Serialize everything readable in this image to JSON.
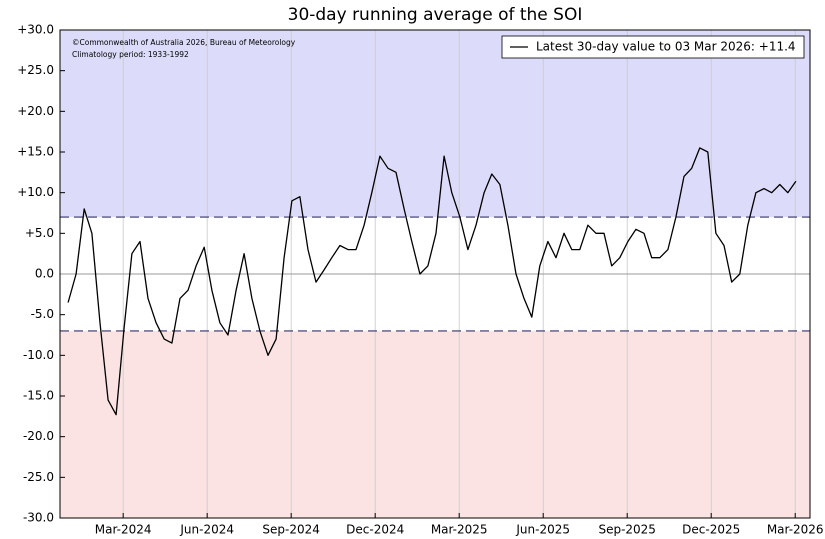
{
  "chart_data": {
    "type": "line",
    "title": "30-day running average of the SOI",
    "annotations": [
      "©Commonwealth of Australia 2026, Bureau of Meteorology",
      "Climatology period: 1933-1992"
    ],
    "legend": "upper right",
    "grid": true,
    "thresholds": [
      7,
      -7
    ],
    "upper_color": "#dcdcfa",
    "lower_color": "#fbe3e3",
    "xlim": [
      2023.979,
      2026.211
    ],
    "xticks": [
      {
        "value": 2024.167,
        "label": "Mar-2024"
      },
      {
        "value": 2024.417,
        "label": "Jun-2024"
      },
      {
        "value": 2024.667,
        "label": "Sep-2024"
      },
      {
        "value": 2024.917,
        "label": "Dec-2024"
      },
      {
        "value": 2025.167,
        "label": "Mar-2025"
      },
      {
        "value": 2025.417,
        "label": "Jun-2025"
      },
      {
        "value": 2025.667,
        "label": "Sep-2025"
      },
      {
        "value": 2025.917,
        "label": "Dec-2025"
      },
      {
        "value": 2026.167,
        "label": "Mar-2026"
      }
    ],
    "ylim": [
      -30,
      30
    ],
    "yticks": [
      {
        "value": 30,
        "label": "+30.0"
      },
      {
        "value": 25,
        "label": "+25.0"
      },
      {
        "value": 20,
        "label": "+20.0"
      },
      {
        "value": 15,
        "label": "+15.0"
      },
      {
        "value": 10,
        "label": "+10.0"
      },
      {
        "value": 5,
        "label": "+5.0"
      },
      {
        "value": 0,
        "label": "0.0"
      },
      {
        "value": -5,
        "label": "-5.0"
      },
      {
        "value": -10,
        "label": "-10.0"
      },
      {
        "value": -15,
        "label": "-15.0"
      },
      {
        "value": -20,
        "label": "-20.0"
      },
      {
        "value": -25,
        "label": "-25.0"
      },
      {
        "value": -30,
        "label": "-30.0"
      }
    ],
    "x": [
      2024.003,
      2024.027,
      2024.051,
      2024.074,
      2024.098,
      2024.122,
      2024.146,
      2024.17,
      2024.193,
      2024.217,
      2024.241,
      2024.265,
      2024.289,
      2024.312,
      2024.336,
      2024.36,
      2024.384,
      2024.408,
      2024.431,
      2024.455,
      2024.479,
      2024.503,
      2024.527,
      2024.55,
      2024.574,
      2024.598,
      2024.622,
      2024.646,
      2024.669,
      2024.693,
      2024.717,
      2024.741,
      2024.765,
      2024.788,
      2024.812,
      2024.836,
      2024.86,
      2024.884,
      2024.907,
      2024.931,
      2024.955,
      2024.979,
      2025.003,
      2025.026,
      2025.05,
      2025.074,
      2025.098,
      2025.122,
      2025.145,
      2025.169,
      2025.193,
      2025.217,
      2025.241,
      2025.264,
      2025.288,
      2025.312,
      2025.336,
      2025.36,
      2025.383,
      2025.407,
      2025.431,
      2025.455,
      2025.479,
      2025.502,
      2025.526,
      2025.55,
      2025.574,
      2025.598,
      2025.621,
      2025.645,
      2025.669,
      2025.693,
      2025.717,
      2025.74,
      2025.764,
      2025.788,
      2025.812,
      2025.836,
      2025.859,
      2025.883,
      2025.907,
      2025.931,
      2025.955,
      2025.978,
      2026.002,
      2026.026,
      2026.05,
      2026.074,
      2026.097,
      2026.121,
      2026.145,
      2026.169
    ],
    "series": [
      {
        "name": "Latest 30-day value to 03 Mar 2026: +11.4",
        "color": "#000000",
        "values": [
          -3.5,
          0,
          8,
          5,
          -6,
          -15.5,
          -17.3,
          -6.5,
          2.5,
          4,
          -3,
          -6,
          -8,
          -8.5,
          -3,
          -2,
          1,
          3.3,
          -2,
          -6,
          -7.5,
          -2,
          2.5,
          -3,
          -7,
          -10,
          -8,
          2,
          9,
          9.5,
          3,
          -1,
          0.5,
          2,
          3.5,
          3,
          3,
          6,
          10,
          14.5,
          13,
          12.5,
          8,
          4,
          0,
          1,
          5,
          14.5,
          10,
          7,
          3,
          6,
          10,
          12.3,
          11,
          6,
          0,
          -3,
          -5.3,
          1,
          4,
          2,
          5,
          3,
          3,
          6,
          5,
          5,
          1,
          2,
          4,
          5.5,
          5,
          2,
          2,
          3,
          7,
          12,
          13,
          15.5,
          15,
          5,
          3.5,
          -1,
          0,
          6,
          10,
          10.5,
          10,
          11,
          10,
          11.4
        ]
      }
    ]
  }
}
